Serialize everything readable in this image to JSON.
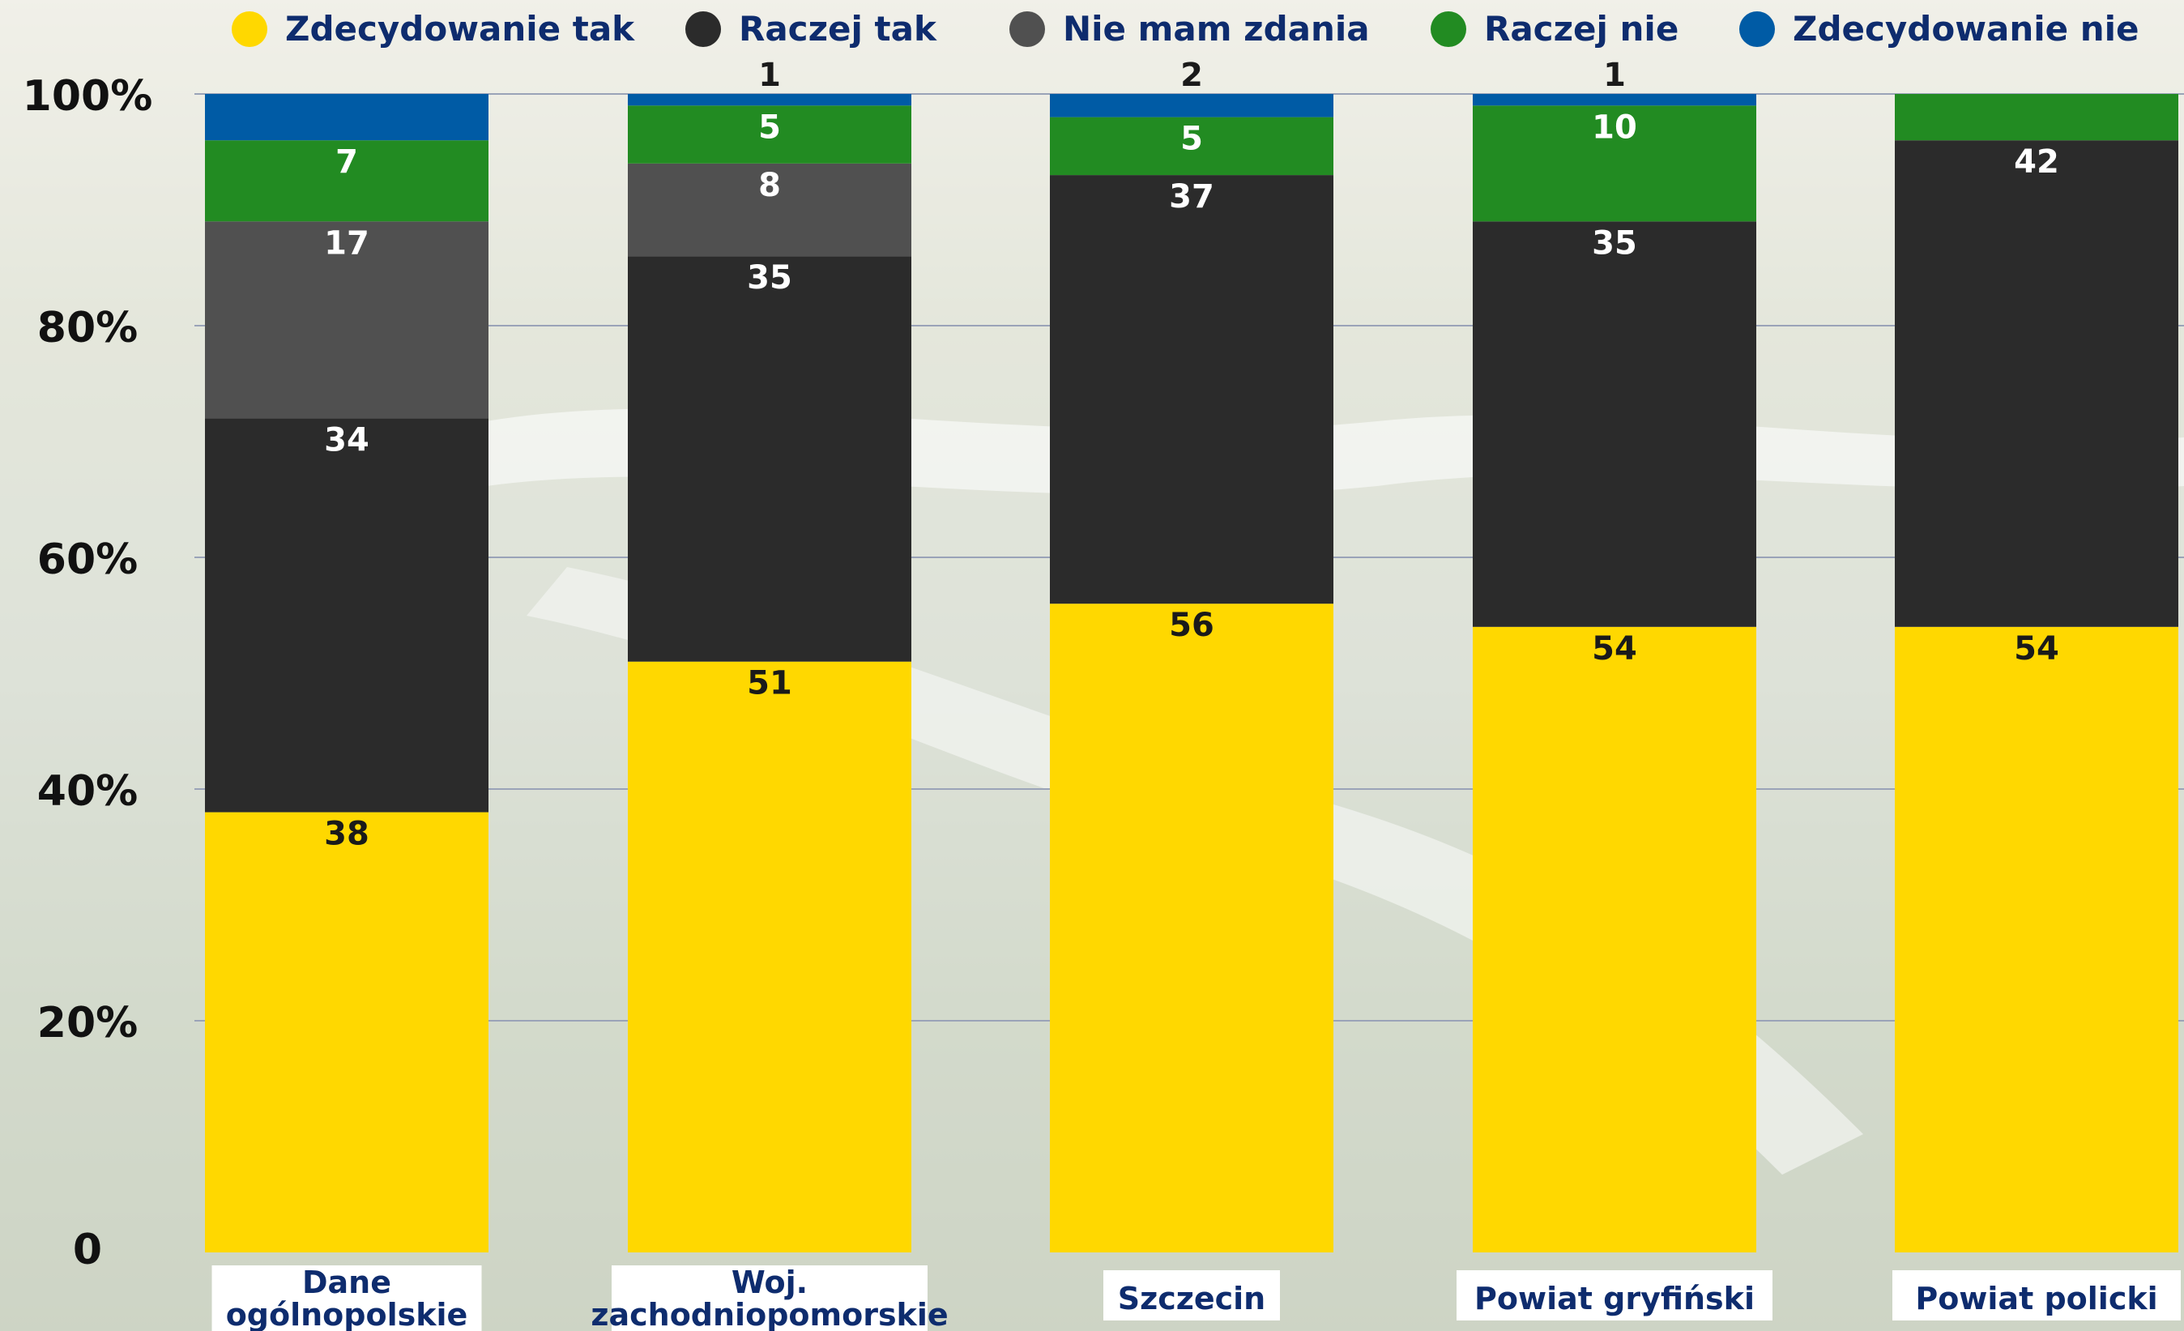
{
  "chart_data": {
    "type": "bar",
    "stacked": true,
    "title": "",
    "xlabel": "",
    "ylabel": "",
    "ylim": [
      0,
      100
    ],
    "y_tick_labels": [
      "0",
      "20%",
      "40%",
      "60%",
      "80%",
      "100%"
    ],
    "y_tick_values": [
      0,
      20,
      40,
      60,
      80,
      100
    ],
    "grid": true,
    "legend_position": "top",
    "categories": [
      [
        "Dane",
        "ogólnopolskie"
      ],
      [
        "Woj.",
        "zachodniopomorskie"
      ],
      [
        "Szczecin"
      ],
      [
        "Powiat gryfiński"
      ],
      [
        "Powiat policki"
      ]
    ],
    "series": [
      {
        "name": "Zdecydowanie tak",
        "color": "#FFD800",
        "label_color": "#1a1a1a",
        "values": [
          38,
          51,
          56,
          54,
          54
        ]
      },
      {
        "name": "Raczej tak",
        "color": "#2B2B2B",
        "label_color": "#ffffff",
        "values": [
          34,
          35,
          37,
          35,
          42
        ]
      },
      {
        "name": "Nie mam zdania",
        "color": "#505050",
        "label_color": "#ffffff",
        "values": [
          17,
          8,
          0,
          0,
          0
        ]
      },
      {
        "name": "Raczej nie",
        "color": "#228B22",
        "label_color": "#ffffff",
        "values": [
          7,
          5,
          5,
          10,
          4
        ]
      },
      {
        "name": "Zdecydowanie nie",
        "color": "#005BA5",
        "label_color": "#ffffff",
        "values": [
          4,
          1,
          2,
          1,
          0
        ]
      }
    ],
    "data_labels": [
      [
        38,
        51,
        56,
        54,
        54
      ],
      [
        34,
        35,
        37,
        35,
        42
      ],
      [
        17,
        8,
        null,
        null,
        null
      ],
      [
        7,
        5,
        5,
        10,
        null
      ],
      [
        null,
        1,
        2,
        1,
        null
      ]
    ]
  },
  "colors": {
    "legend_text": "#0E2C6E",
    "axis_text": "#111111",
    "category_text": "#0E2C6E",
    "category_box": "#ffffff",
    "gridline": "#9aa3b8"
  }
}
